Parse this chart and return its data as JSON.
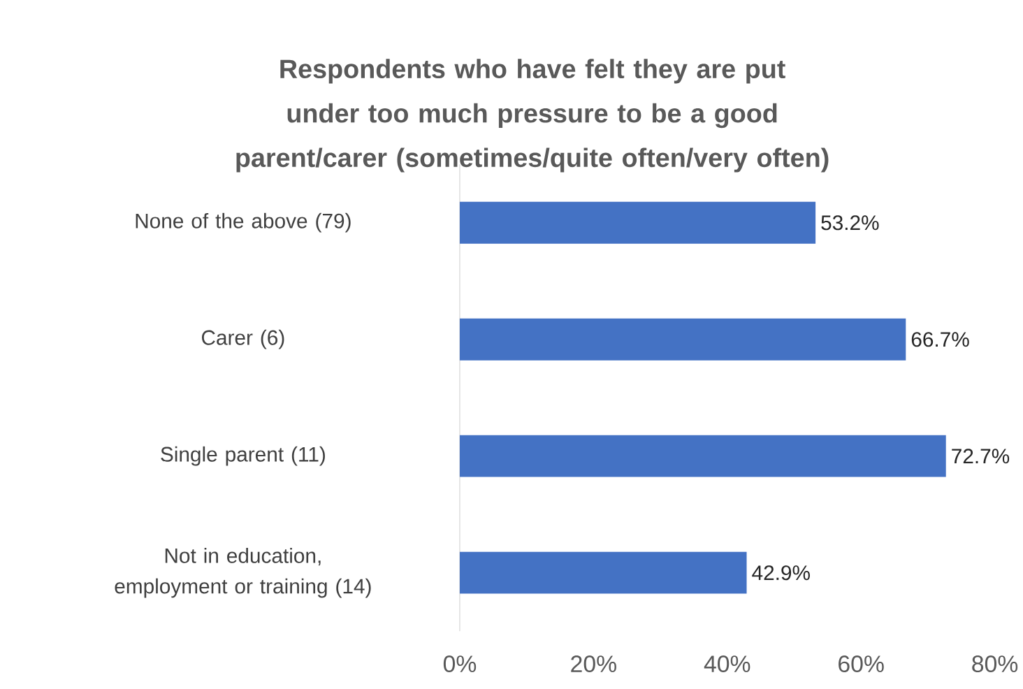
{
  "chart_data": {
    "type": "bar",
    "orientation": "horizontal",
    "title": "Respondents who have felt they are put under too much pressure to be a good parent/carer (sometimes/quite often/very often)",
    "categories": [
      "None of the above (79)",
      "Carer (6)",
      "Single parent (11)",
      "Not in education, employment or training (14)"
    ],
    "values": [
      53.2,
      66.7,
      72.7,
      42.9
    ],
    "value_labels": [
      "53.2%",
      "66.7%",
      "72.7%",
      "42.9%"
    ],
    "color": "#4472c4",
    "xlim": [
      0,
      80
    ],
    "xticks": [
      {
        "value": 0,
        "label": "0%"
      },
      {
        "value": 20,
        "label": "20%"
      },
      {
        "value": 40,
        "label": "40%"
      },
      {
        "value": 60,
        "label": "60%"
      },
      {
        "value": 80,
        "label": "80%"
      }
    ]
  }
}
